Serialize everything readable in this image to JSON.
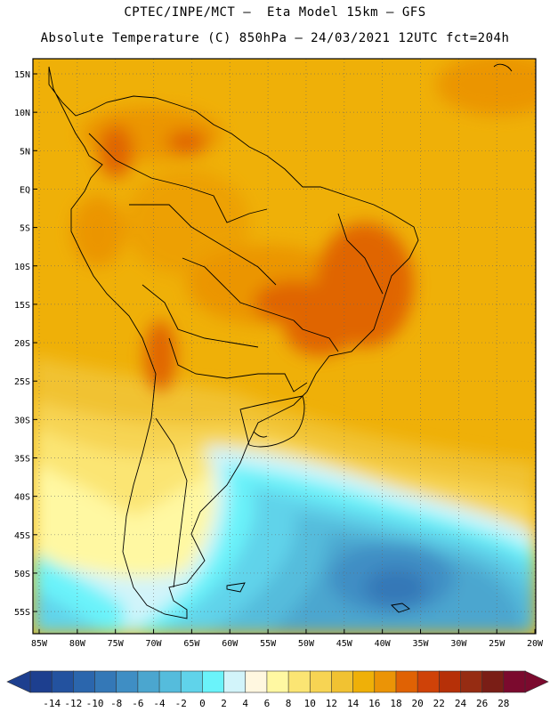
{
  "header": {
    "line1": "CPTEC/INPE/MCT –  Eta Model 15km – GFS",
    "line2": "Absolute Temperature (C) 850hPa – 24/03/2021 12UTC fct=204h"
  },
  "map": {
    "lat_labels": [
      "15N",
      "10N",
      "5N",
      "EQ",
      "5S",
      "10S",
      "15S",
      "20S",
      "25S",
      "30S",
      "35S",
      "40S",
      "45S",
      "50S",
      "55S"
    ],
    "lon_labels": [
      "85W",
      "80W",
      "75W",
      "70W",
      "65W",
      "60W",
      "55W",
      "50W",
      "45W",
      "40W",
      "35W",
      "30W",
      "25W",
      "20W"
    ]
  },
  "colorbar": {
    "ticks": [
      "-14",
      "-12",
      "-10",
      "-8",
      "-6",
      "-4",
      "-2",
      "0",
      "2",
      "4",
      "6",
      "8",
      "10",
      "12",
      "14",
      "16",
      "18",
      "20",
      "22",
      "24",
      "26",
      "28"
    ],
    "colors": [
      "#1d3f8f",
      "#23529f",
      "#2b66ad",
      "#3478b7",
      "#3f8ec4",
      "#4ba6cf",
      "#55bcdc",
      "#60d3ea",
      "#6af3fa",
      "#d2f4fa",
      "#fff7e0",
      "#fff8a2",
      "#fbe573",
      "#f7d453",
      "#f1c232",
      "#efb008",
      "#eb9406",
      "#e06204",
      "#cf4208",
      "#b63008",
      "#962c12",
      "#7a1e16",
      "#7b0a2e"
    ]
  }
}
